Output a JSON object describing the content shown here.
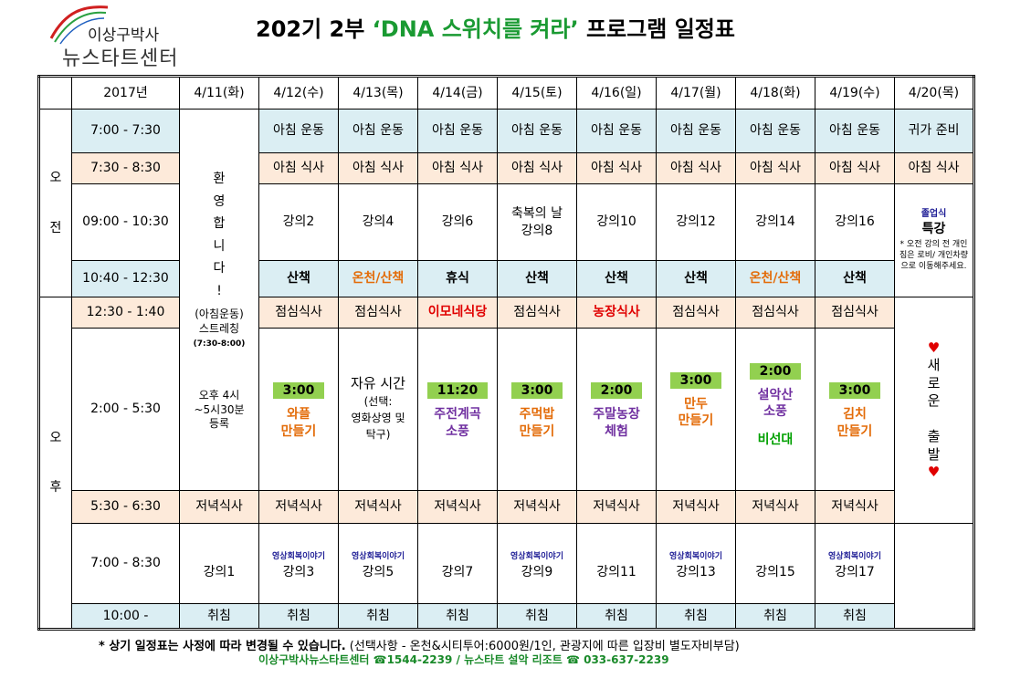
{
  "logo": {
    "line1": "이상구박사",
    "line2": "뉴스타트센터"
  },
  "title": {
    "prefix": "202기 2부 ",
    "highlight": "‘DNA 스위치를 켜라’",
    "suffix": " 프로그램 일정표"
  },
  "table": {
    "year": "2017년",
    "dates": [
      "4/11(화)",
      "4/12(수)",
      "4/13(목)",
      "4/14(금)",
      "4/15(토)",
      "4/16(일)",
      "4/17(월)",
      "4/18(화)",
      "4/19(수)",
      "4/20(목)"
    ],
    "ampm": {
      "am": [
        "오",
        "전"
      ],
      "pm": [
        "오",
        "후"
      ]
    },
    "times": [
      "7:00 - 7:30",
      "7:30 - 8:30",
      "09:00 - 10:30",
      "10:40 - 12:30",
      "12:30 - 1:40",
      "2:00 - 5:30",
      "5:30 - 6:30",
      "7:00 - 8:30",
      "10:00 -"
    ],
    "welcome": {
      "vertical": [
        "환",
        "영",
        "합",
        "니",
        "다",
        "!"
      ],
      "l1": "(아침운동)",
      "l2": "스트레칭",
      "l3": "(7:30-8:00)"
    },
    "arrival": {
      "l1": "오후 4시",
      "l2": "~5시30분",
      "l3": "등록"
    },
    "morning_exercise": "아침 운동",
    "return_prep": "귀가 준비",
    "breakfast": "아침 식사",
    "lectures_am": [
      "강의2",
      "강의4",
      "강의6",
      "",
      "강의10",
      "강의12",
      "강의14",
      "강의16"
    ],
    "blessing": {
      "l1": "축복의 날",
      "l2": "강의8"
    },
    "graduation": {
      "title": "졸업식",
      "sub": "특강",
      "note": "* 오전 강의 전 개인 짐은 로비/ 개인차량으로 이동해주세요."
    },
    "walk": [
      "산책",
      "온천/산책",
      "휴식",
      "산책",
      "산책",
      "산책",
      "온천/산책",
      "산책"
    ],
    "lunch": [
      "점심식사",
      "점심식사",
      "이모네식당",
      "점심식사",
      "농장식사",
      "점심식사",
      "점심식사",
      "점심식사"
    ],
    "afternoon": {
      "d12": {
        "time": "3:00",
        "l1": "와플",
        "l2": "만들기"
      },
      "d13": {
        "l1": "자유 시간",
        "l2": "(선택:",
        "l3": "영화상영 및",
        "l4": "탁구)"
      },
      "d14": {
        "time": "11:20",
        "l1": "주전계곡",
        "l2": "소풍"
      },
      "d15": {
        "time": "3:00",
        "l1": "주먹밥",
        "l2": "만들기"
      },
      "d16": {
        "time": "2:00",
        "l1": "주말농장",
        "l2": "체험"
      },
      "d17": {
        "time": "3:00",
        "l1": "만두",
        "l2": "만들기"
      },
      "d18": {
        "time": "2:00",
        "l1": "설악산",
        "l2": "소풍",
        "l3": "비선대"
      },
      "d19": {
        "time": "3:00",
        "l1": "김치",
        "l2": "만들기"
      },
      "d20": {
        "heart": "♥",
        "vertical1": [
          "새",
          "로",
          "운"
        ],
        "vertical2": [
          "출",
          "발"
        ]
      }
    },
    "dinner": "저녁식사",
    "evening": [
      {
        "sub": "",
        "lec": "강의1"
      },
      {
        "sub": "영상회복이야기",
        "lec": "강의3"
      },
      {
        "sub": "영상회복이야기",
        "lec": "강의5"
      },
      {
        "sub": "",
        "lec": "강의7"
      },
      {
        "sub": "영상회복이야기",
        "lec": "강의9"
      },
      {
        "sub": "",
        "lec": "강의11"
      },
      {
        "sub": "영상회복이야기",
        "lec": "강의13"
      },
      {
        "sub": "",
        "lec": "강의15"
      },
      {
        "sub": "영상회복이야기",
        "lec": "강의17"
      }
    ],
    "sleep": "취침"
  },
  "note": {
    "bold": "* 상기 일정표는 사정에 따라 변경될 수 있습니다.",
    "rest": " (선택사항 - 온천&시티투어:6000원/1인, 관광지에 따른 입장비 별도자비부담)"
  },
  "contact": "이상구박사뉴스타트센터 ☎1544-2239 / 뉴스타트 설악 리조트 ☎ 033-637-2239",
  "colors": {
    "title_highlight": "#1a9a32",
    "blue_band": "#dbeef3",
    "peach_band": "#fdeada",
    "badge": "#92d050",
    "red": "#e00000",
    "orange": "#e36c09",
    "purple": "#7030a0",
    "navy": "#1f1e96"
  }
}
